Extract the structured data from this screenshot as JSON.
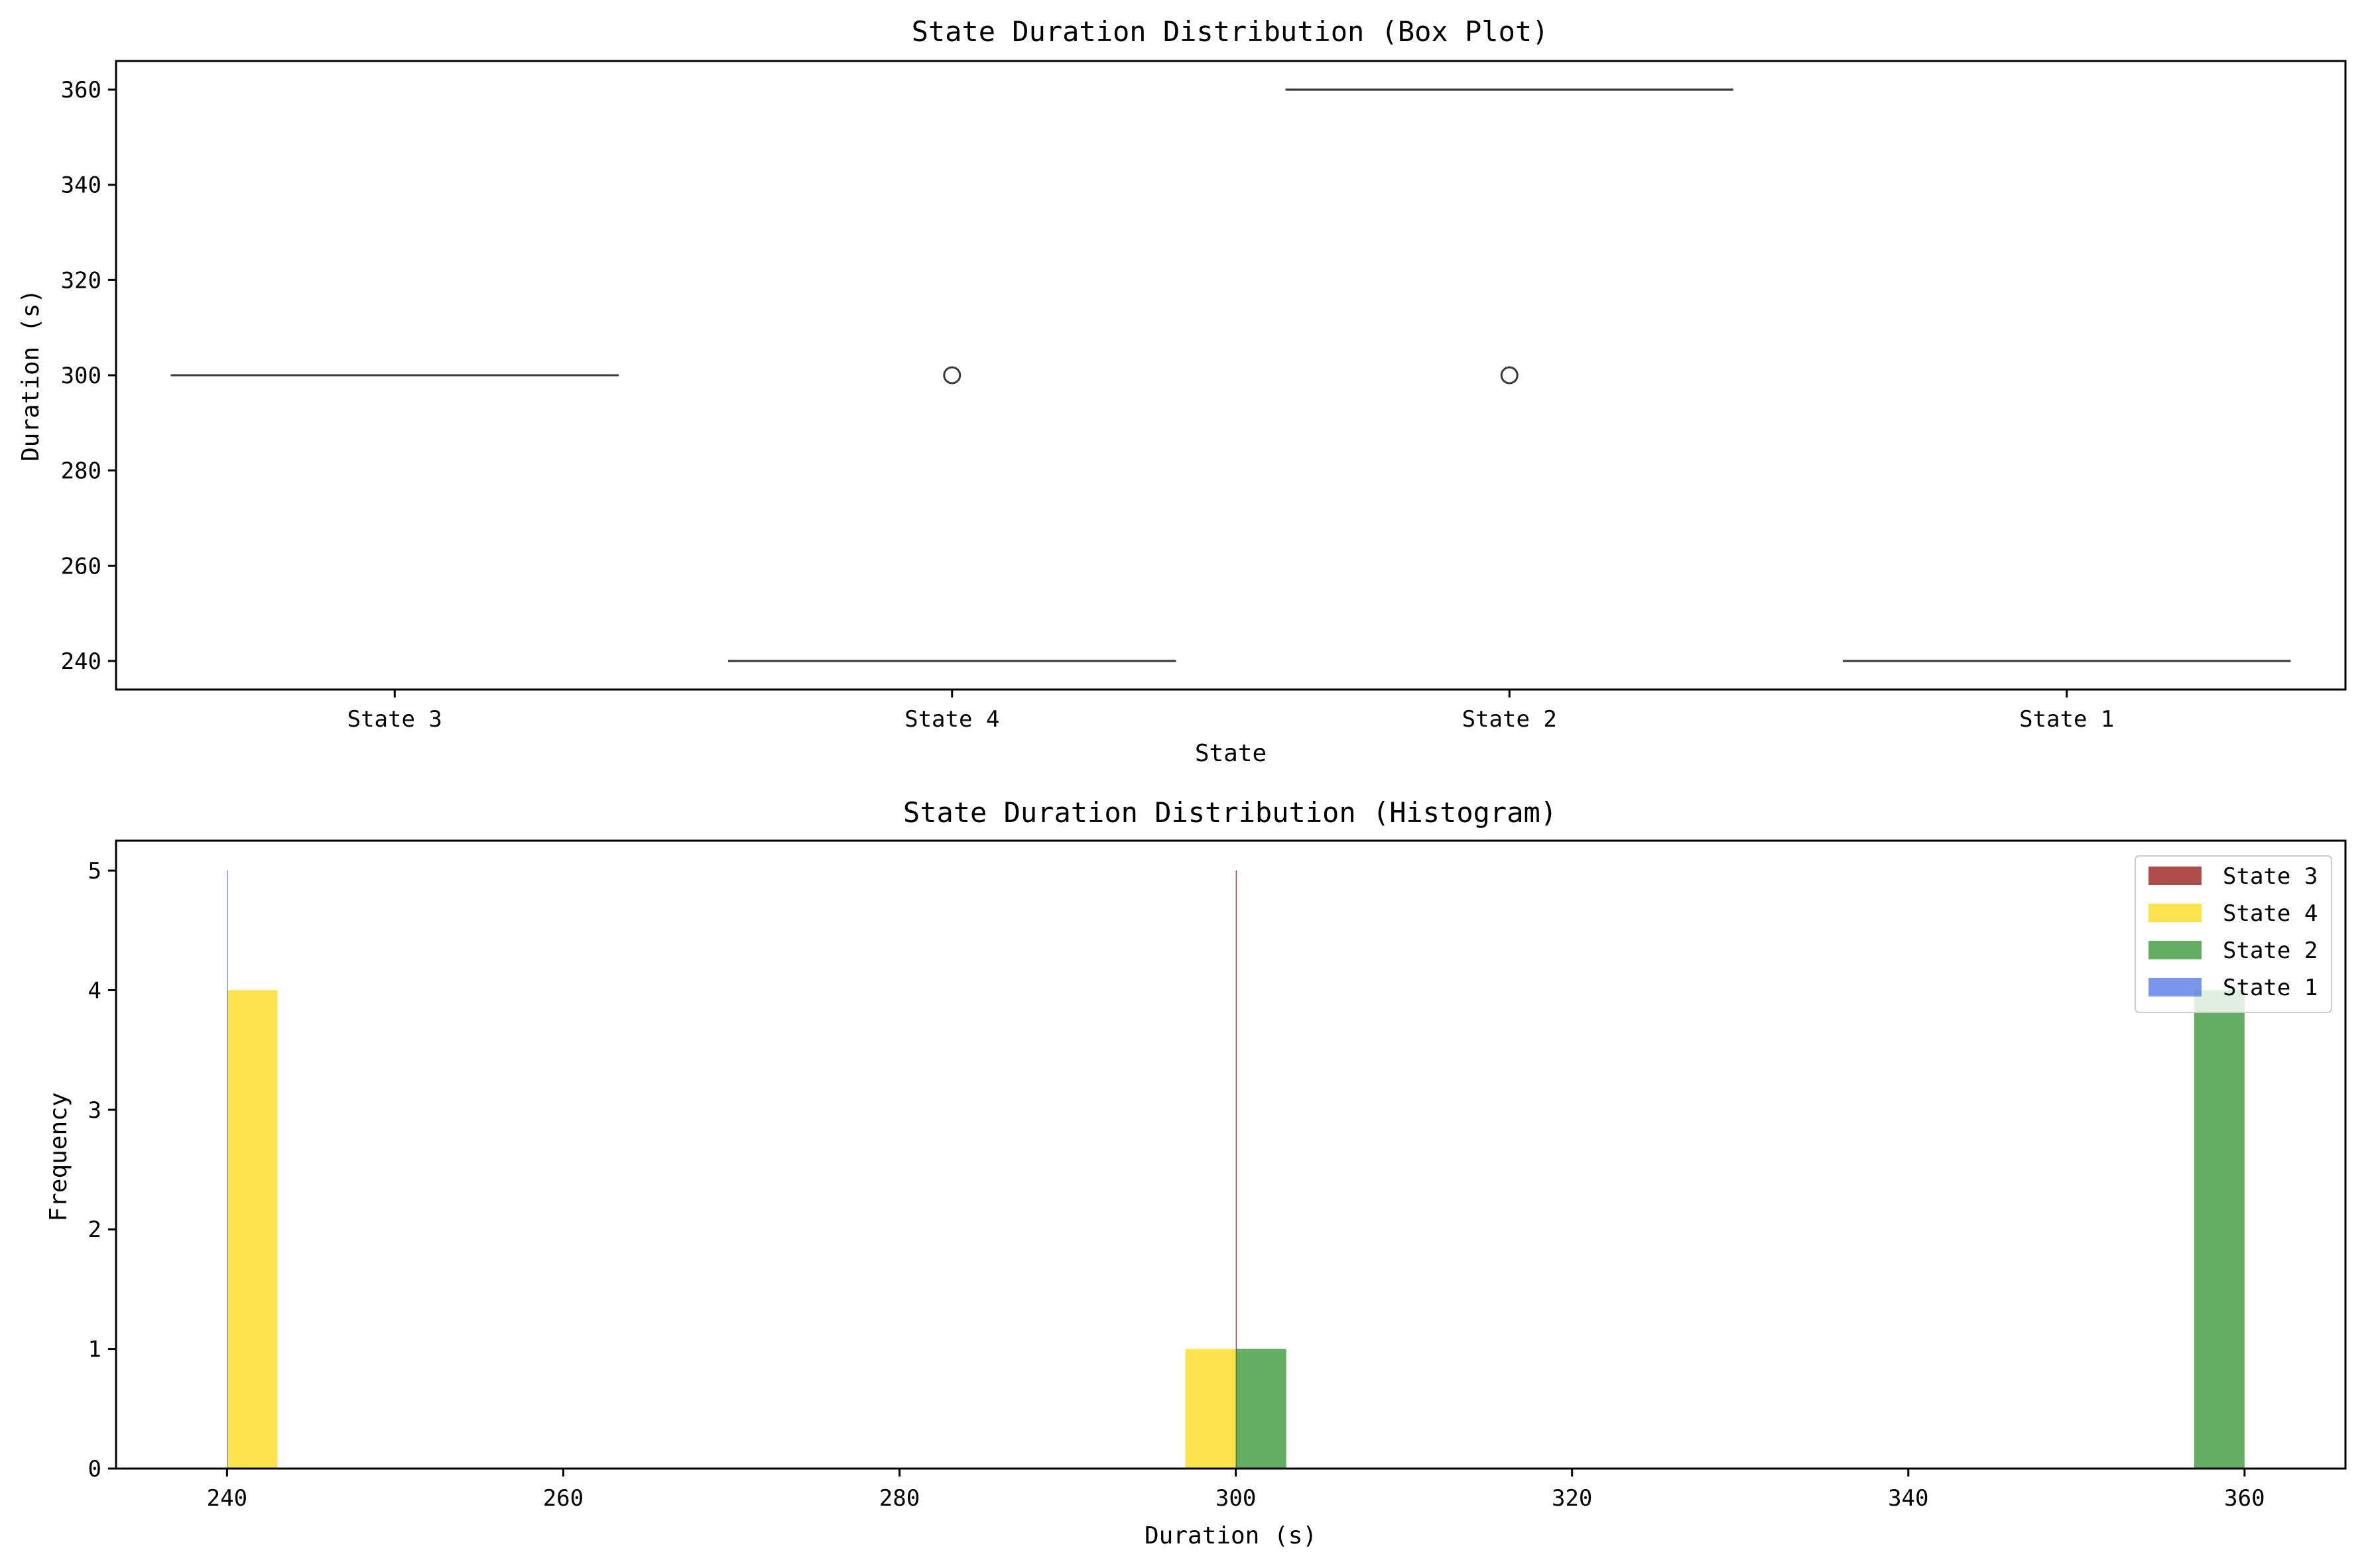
{
  "chart_data": [
    {
      "type": "box",
      "title": "State Duration Distribution (Box Plot)",
      "xlabel": "State",
      "ylabel": "Duration (s)",
      "categories": [
        "State 3",
        "State 4",
        "State 2",
        "State 1"
      ],
      "ylim": [
        234,
        366
      ],
      "yticks": [
        240,
        260,
        280,
        300,
        320,
        340,
        360
      ],
      "grid": false,
      "boxes": [
        {
          "name": "State 3",
          "q1": 300,
          "median": 300,
          "q3": 300,
          "whisker_low": 300,
          "whisker_high": 300,
          "outliers": []
        },
        {
          "name": "State 4",
          "q1": 240,
          "median": 240,
          "q3": 240,
          "whisker_low": 240,
          "whisker_high": 240,
          "outliers": [
            300
          ]
        },
        {
          "name": "State 2",
          "q1": 360,
          "median": 360,
          "q3": 360,
          "whisker_low": 360,
          "whisker_high": 360,
          "outliers": [
            300
          ]
        },
        {
          "name": "State 1",
          "q1": 240,
          "median": 240,
          "q3": 240,
          "whisker_low": 240,
          "whisker_high": 240,
          "outliers": []
        }
      ]
    },
    {
      "type": "bar",
      "title": "State Duration Distribution (Histogram)",
      "xlabel": "Duration (s)",
      "ylabel": "Frequency",
      "xlim": [
        233.4,
        366
      ],
      "ylim": [
        0,
        5.25
      ],
      "xticks": [
        240,
        260,
        280,
        300,
        320,
        340,
        360
      ],
      "yticks": [
        0,
        1,
        2,
        3,
        4,
        5
      ],
      "grid": false,
      "legend_position": "top-right",
      "series": [
        {
          "name": "State 3",
          "color": "#8b0000",
          "bars": [
            {
              "x0": 300,
              "x1": 300.03,
              "count": 5
            }
          ]
        },
        {
          "name": "State 4",
          "color": "#ffd700",
          "bars": [
            {
              "x0": 240,
              "x1": 243,
              "count": 4
            },
            {
              "x0": 297,
              "x1": 300,
              "count": 1
            }
          ]
        },
        {
          "name": "State 2",
          "color": "#228b22",
          "bars": [
            {
              "x0": 300,
              "x1": 303,
              "count": 1
            },
            {
              "x0": 357,
              "x1": 360,
              "count": 4
            }
          ]
        },
        {
          "name": "State 1",
          "color": "#4169e1",
          "bars": [
            {
              "x0": 240,
              "x1": 240.03,
              "count": 5
            }
          ]
        }
      ]
    }
  ]
}
